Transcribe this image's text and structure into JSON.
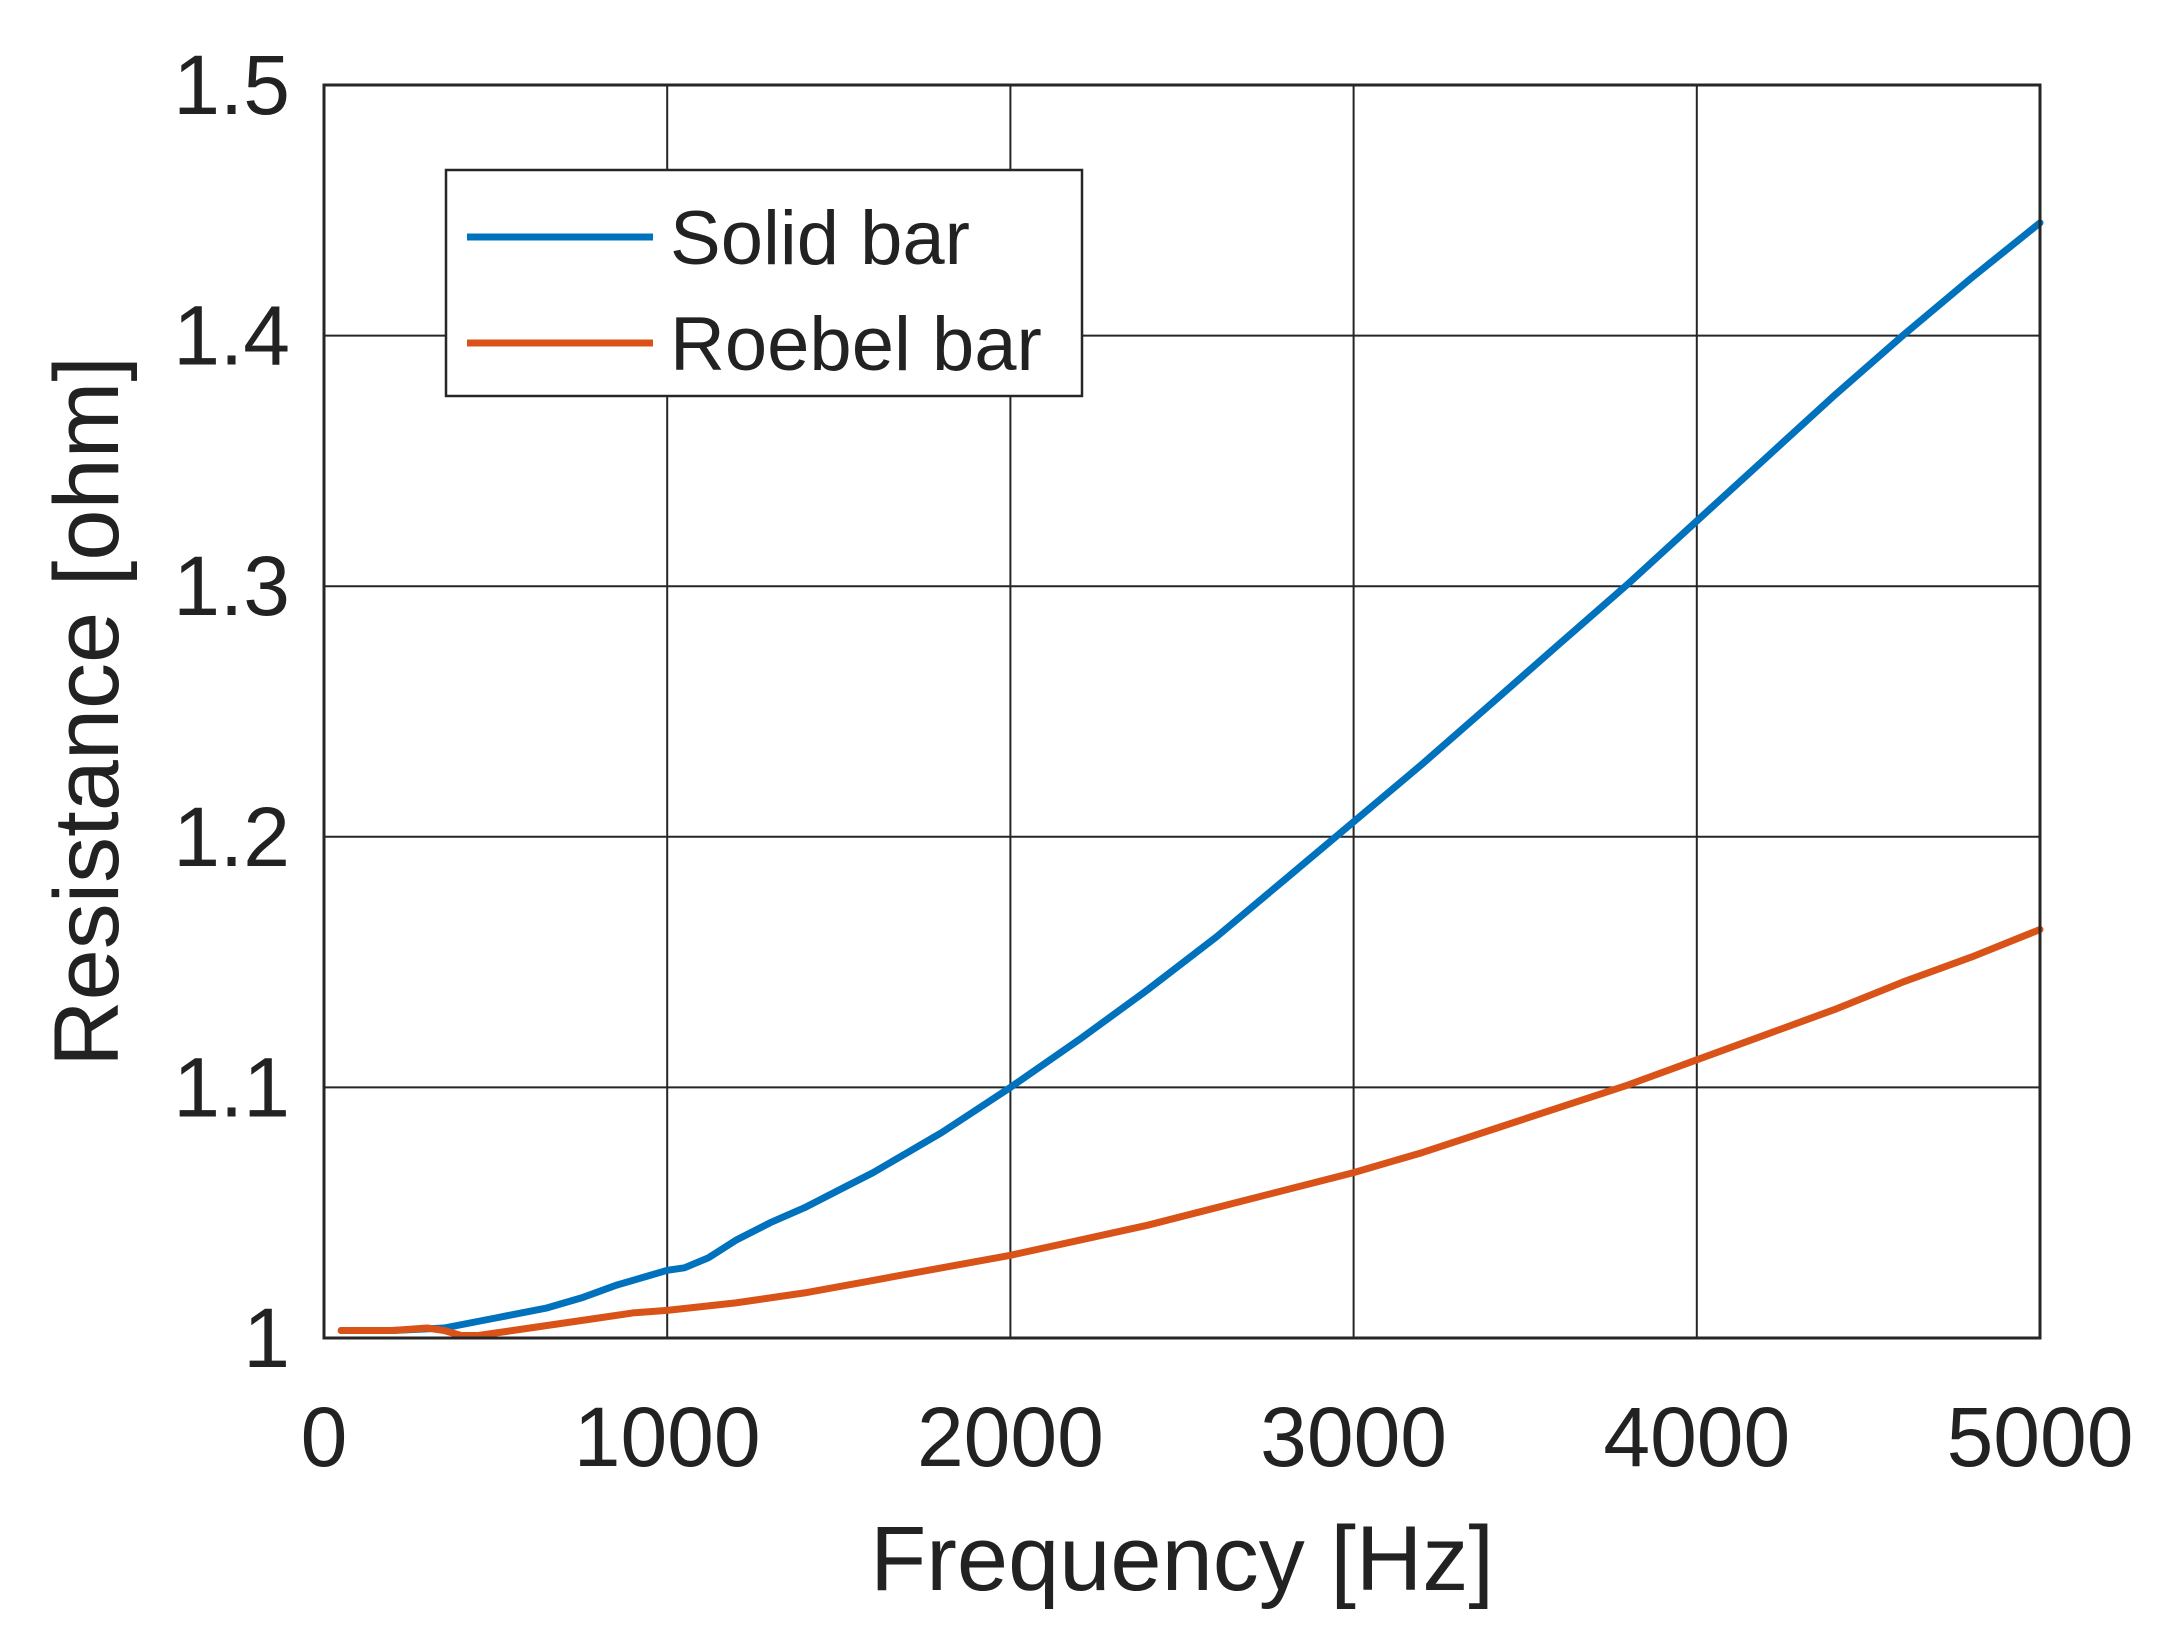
{
  "chart_data": {
    "type": "line",
    "title": "",
    "xlabel": "Frequency [Hz]",
    "ylabel": "Resistance [ohm]",
    "xlim": [
      0,
      5000
    ],
    "ylim": [
      1,
      1.5
    ],
    "xticks": [
      0,
      1000,
      2000,
      3000,
      4000,
      5000
    ],
    "xtick_labels": [
      "0",
      "1000",
      "2000",
      "3000",
      "4000",
      "5000"
    ],
    "yticks": [
      1,
      1.1,
      1.2,
      1.3,
      1.4,
      1.5
    ],
    "ytick_labels": [
      "1",
      "1.1",
      "1.2",
      "1.3",
      "1.4",
      "1.5"
    ],
    "grid": true,
    "legend_position": "top-left",
    "series": [
      {
        "name": "Solid bar",
        "color": "#0072BD",
        "x": [
          50,
          200,
          350,
          500,
          650,
          750,
          850,
          950,
          1000,
          1050,
          1120,
          1200,
          1300,
          1400,
          1500,
          1600,
          1700,
          1800,
          1900,
          2000,
          2200,
          2400,
          2600,
          2800,
          3000,
          3200,
          3400,
          3600,
          3800,
          4000,
          4200,
          4400,
          4600,
          4800,
          5000
        ],
        "y": [
          1.003,
          1.003,
          1.004,
          1.008,
          1.012,
          1.016,
          1.021,
          1.025,
          1.027,
          1.028,
          1.032,
          1.039,
          1.046,
          1.052,
          1.059,
          1.066,
          1.074,
          1.082,
          1.091,
          1.1,
          1.119,
          1.139,
          1.16,
          1.183,
          1.206,
          1.229,
          1.253,
          1.277,
          1.301,
          1.326,
          1.351,
          1.376,
          1.4,
          1.423,
          1.445
        ]
      },
      {
        "name": "Roebel bar",
        "color": "#D95319",
        "x": [
          50,
          200,
          300,
          350,
          400,
          450,
          500,
          600,
          700,
          800,
          900,
          1000,
          1200,
          1400,
          1600,
          1800,
          2000,
          2200,
          2400,
          2600,
          2800,
          3000,
          3200,
          3400,
          3600,
          3800,
          4000,
          4200,
          4400,
          4600,
          4800,
          5000
        ],
        "y": [
          1.003,
          1.003,
          1.004,
          1.003,
          1.001,
          1.001,
          1.002,
          1.004,
          1.006,
          1.008,
          1.01,
          1.011,
          1.014,
          1.018,
          1.023,
          1.028,
          1.033,
          1.039,
          1.045,
          1.052,
          1.059,
          1.066,
          1.074,
          1.083,
          1.092,
          1.101,
          1.111,
          1.121,
          1.131,
          1.142,
          1.152,
          1.163
        ]
      }
    ]
  }
}
